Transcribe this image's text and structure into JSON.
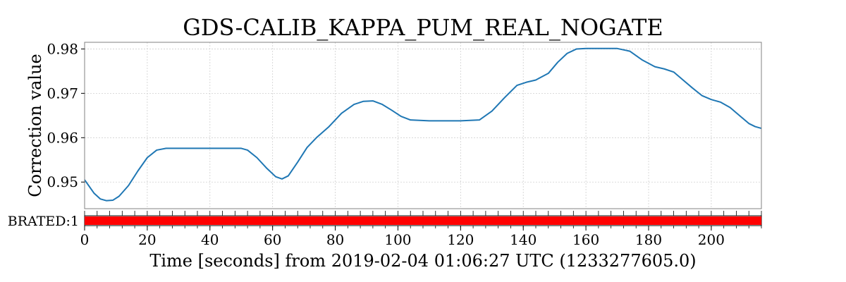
{
  "colors": {
    "series": "#1f77b4",
    "flag_bar": "#ff0000",
    "grid": "#cfcfcf",
    "frame": "#808080"
  },
  "chart_data": {
    "type": "line",
    "title": "GDS-CALIB_KAPPA_PUM_REAL_NOGATE",
    "ylabel": "Correction value",
    "xlabel": "Time [seconds] from 2019-02-04 01:06:27 UTC (1233277605.0)",
    "xlim": [
      0,
      216
    ],
    "ylim": [
      0.944,
      0.9815
    ],
    "x_ticks": [
      0,
      20,
      40,
      60,
      80,
      100,
      120,
      140,
      160,
      180,
      200
    ],
    "x_tick_labels": [
      "0",
      "20",
      "40",
      "60",
      "80",
      "100",
      "120",
      "140",
      "160",
      "180",
      "200"
    ],
    "y_ticks": [
      0.95,
      0.96,
      0.97,
      0.98
    ],
    "y_tick_labels": [
      "0.95",
      "0.96",
      "0.97",
      "0.98"
    ],
    "grid": true,
    "series": [
      {
        "x": [
          0,
          3,
          5,
          7,
          9,
          11,
          14,
          17,
          20,
          23,
          26,
          30,
          40,
          50,
          52,
          55,
          58,
          61,
          63,
          65,
          68,
          71,
          74,
          78,
          82,
          86,
          89,
          92,
          95,
          98,
          101,
          104,
          110,
          120,
          126,
          130,
          134,
          138,
          141,
          144,
          148,
          151,
          154,
          157,
          160,
          166,
          170,
          174,
          178,
          182,
          185,
          188,
          191,
          194,
          197,
          200,
          203,
          206,
          209,
          212,
          214,
          216
        ],
        "y": [
          0.9505,
          0.9475,
          0.9462,
          0.9458,
          0.9459,
          0.9468,
          0.9492,
          0.9525,
          0.9555,
          0.9572,
          0.9576,
          0.9576,
          0.9576,
          0.9576,
          0.9572,
          0.9555,
          0.9532,
          0.9512,
          0.9507,
          0.9514,
          0.9545,
          0.9578,
          0.96,
          0.9625,
          0.9655,
          0.9675,
          0.9682,
          0.9683,
          0.9675,
          0.9662,
          0.9648,
          0.964,
          0.9638,
          0.9638,
          0.964,
          0.966,
          0.969,
          0.9718,
          0.9725,
          0.973,
          0.9745,
          0.977,
          0.979,
          0.98,
          0.9801,
          0.9801,
          0.9801,
          0.9795,
          0.9775,
          0.976,
          0.9755,
          0.9748,
          0.973,
          0.9712,
          0.9695,
          0.9686,
          0.968,
          0.9668,
          0.965,
          0.9632,
          0.9625,
          0.9621
        ]
      }
    ],
    "flag_label": "BRATED:1",
    "flag_segments": [
      [
        0,
        216
      ]
    ]
  }
}
